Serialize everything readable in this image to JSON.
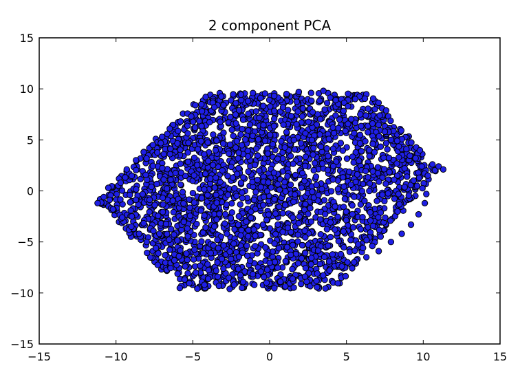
{
  "chart_data": {
    "type": "scatter",
    "title": "2 component PCA",
    "xlabel": "",
    "ylabel": "",
    "xlim": [
      -15,
      15
    ],
    "ylim": [
      -15,
      15
    ],
    "x_ticks": [
      -15,
      -10,
      -5,
      0,
      5,
      10,
      15
    ],
    "y_ticks": [
      -15,
      -10,
      -5,
      0,
      5,
      10,
      15
    ],
    "x_tick_labels": [
      "−15",
      "−10",
      "−5",
      "0",
      "5",
      "10",
      "15"
    ],
    "y_tick_labels": [
      "−15",
      "−10",
      "−5",
      "0",
      "5",
      "10",
      "15"
    ],
    "grid": false,
    "legend": false,
    "marker_color": "#1f1fe6",
    "marker_edge_color": "#000000",
    "series": [
      {
        "points": [
          [
            -11.2,
            -1.2
          ],
          [
            -10.8,
            -0.6
          ],
          [
            -10.5,
            0.3
          ],
          [
            -10.2,
            -1.8
          ],
          [
            -9.8,
            1.2
          ],
          [
            -9.6,
            -2.6
          ],
          [
            -9.3,
            2.1
          ],
          [
            -9.0,
            -3.5
          ],
          [
            -8.7,
            3.0
          ],
          [
            -8.5,
            -4.2
          ],
          [
            -8.2,
            3.8
          ],
          [
            -8.0,
            -5.0
          ],
          [
            -7.6,
            4.5
          ],
          [
            -7.4,
            -5.6
          ],
          [
            -7.0,
            5.3
          ],
          [
            -6.8,
            -6.3
          ],
          [
            -6.5,
            6.1
          ],
          [
            -6.2,
            -6.8
          ],
          [
            -5.8,
            6.8
          ],
          [
            -5.5,
            -7.4
          ],
          [
            -5.1,
            7.3
          ],
          [
            -4.8,
            -8.0
          ],
          [
            -4.4,
            7.8
          ],
          [
            -4.0,
            -8.6
          ],
          [
            -3.6,
            8.2
          ],
          [
            -3.3,
            -9.3
          ],
          [
            -3.0,
            8.4
          ],
          [
            -2.6,
            -9.6
          ],
          [
            -2.2,
            8.6
          ],
          [
            -1.8,
            -9.5
          ],
          [
            -1.4,
            8.8
          ],
          [
            -1.0,
            -9.2
          ],
          [
            -0.6,
            9.1
          ],
          [
            -0.2,
            -9.0
          ],
          [
            0.3,
            9.3
          ],
          [
            0.7,
            -8.9
          ],
          [
            1.1,
            9.5
          ],
          [
            1.5,
            -8.6
          ],
          [
            1.9,
            9.7
          ],
          [
            2.3,
            -8.4
          ],
          [
            2.7,
            9.6
          ],
          [
            3.1,
            -8.1
          ],
          [
            3.5,
            9.8
          ],
          [
            3.9,
            -7.8
          ],
          [
            4.3,
            8.9
          ],
          [
            4.7,
            -7.4
          ],
          [
            5.1,
            8.3
          ],
          [
            5.5,
            -7.0
          ],
          [
            5.9,
            7.5
          ],
          [
            6.3,
            -6.5
          ],
          [
            6.7,
            6.6
          ],
          [
            7.1,
            -5.9
          ],
          [
            7.5,
            5.8
          ],
          [
            7.9,
            -5.0
          ],
          [
            8.3,
            4.9
          ],
          [
            8.6,
            -4.2
          ],
          [
            8.9,
            4.1
          ],
          [
            9.2,
            -3.3
          ],
          [
            9.5,
            3.2
          ],
          [
            9.7,
            -2.3
          ],
          [
            9.9,
            2.4
          ],
          [
            10.1,
            -1.2
          ],
          [
            10.3,
            1.5
          ],
          [
            10.6,
            2.6
          ],
          [
            11.0,
            2.4
          ],
          [
            11.3,
            2.1
          ],
          [
            10.2,
            -0.3
          ],
          [
            9.6,
            0.5
          ],
          [
            -9.7,
            0.8
          ],
          [
            -9.1,
            -0.4
          ]
        ]
      }
    ]
  }
}
